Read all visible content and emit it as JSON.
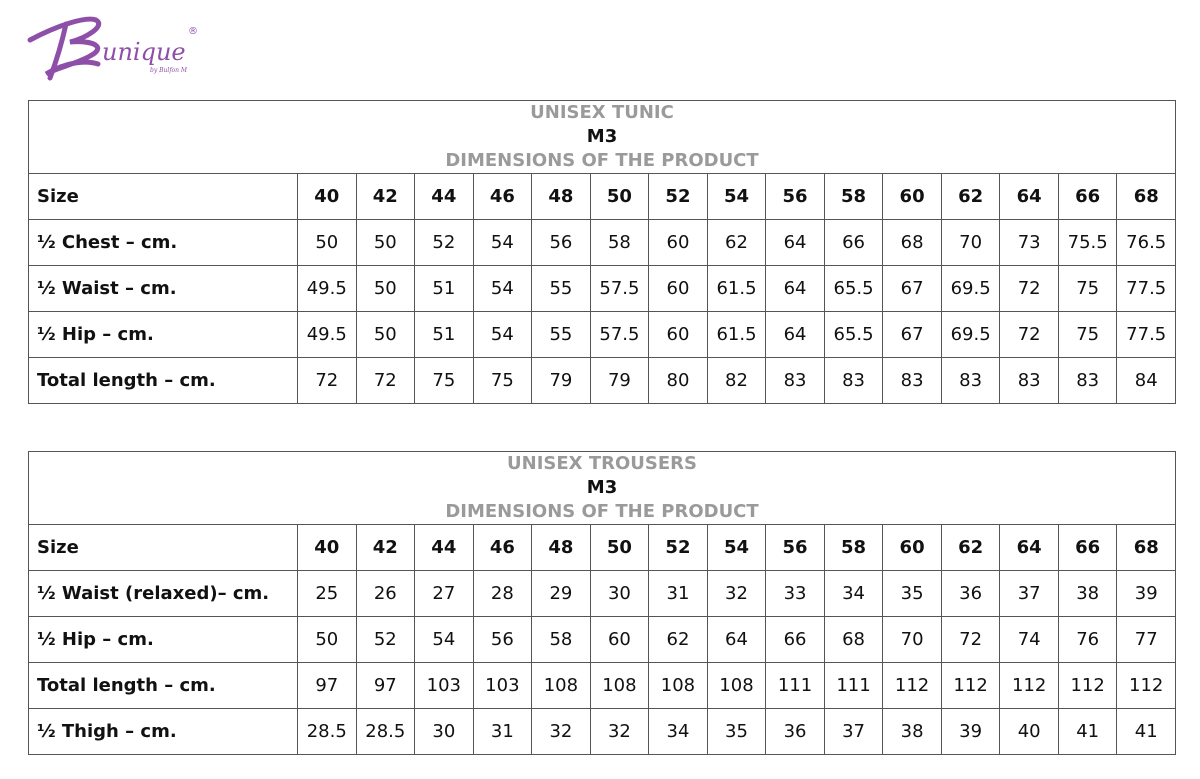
{
  "brand": {
    "logo_text": "Be unique",
    "logo_subtext": "by Bulfon M",
    "registered_mark": "®",
    "color": "#8e4fa8"
  },
  "tables": [
    {
      "id": "tunic",
      "title": "UNISEX TUNIC",
      "model": "M3",
      "subtitle": "DIMENSIONS OF THE PRODUCT",
      "size_label": "Size",
      "sizes": [
        "40",
        "42",
        "44",
        "46",
        "48",
        "50",
        "52",
        "54",
        "56",
        "58",
        "60",
        "62",
        "64",
        "66",
        "68"
      ],
      "rows": [
        {
          "label": "½ Chest – cm.",
          "values": [
            "50",
            "50",
            "52",
            "54",
            "56",
            "58",
            "60",
            "62",
            "64",
            "66",
            "68",
            "70",
            "73",
            "75.5",
            "76.5"
          ]
        },
        {
          "label": "½ Waist – cm.",
          "values": [
            "49.5",
            "50",
            "51",
            "54",
            "55",
            "57.5",
            "60",
            "61.5",
            "64",
            "65.5",
            "67",
            "69.5",
            "72",
            "75",
            "77.5"
          ]
        },
        {
          "label": "½ Hip – cm.",
          "values": [
            "49.5",
            "50",
            "51",
            "54",
            "55",
            "57.5",
            "60",
            "61.5",
            "64",
            "65.5",
            "67",
            "69.5",
            "72",
            "75",
            "77.5"
          ]
        },
        {
          "label": "Total length – cm.",
          "values": [
            "72",
            "72",
            "75",
            "75",
            "79",
            "79",
            "80",
            "82",
            "83",
            "83",
            "83",
            "83",
            "83",
            "83",
            "84"
          ]
        }
      ]
    },
    {
      "id": "trousers",
      "title": "UNISEX TROUSERS",
      "model": "M3",
      "subtitle": "DIMENSIONS OF THE PRODUCT",
      "size_label": "Size",
      "sizes": [
        "40",
        "42",
        "44",
        "46",
        "48",
        "50",
        "52",
        "54",
        "56",
        "58",
        "60",
        "62",
        "64",
        "66",
        "68"
      ],
      "rows": [
        {
          "label": "½ Waist (relaxed)– cm.",
          "values": [
            "25",
            "26",
            "27",
            "28",
            "29",
            "30",
            "31",
            "32",
            "33",
            "34",
            "35",
            "36",
            "37",
            "38",
            "39"
          ]
        },
        {
          "label": "½ Hip – cm.",
          "values": [
            "50",
            "52",
            "54",
            "56",
            "58",
            "60",
            "62",
            "64",
            "66",
            "68",
            "70",
            "72",
            "74",
            "76",
            "77"
          ]
        },
        {
          "label": "Total length – cm.",
          "values": [
            "97",
            "97",
            "103",
            "103",
            "108",
            "108",
            "108",
            "108",
            "111",
            "111",
            "112",
            "112",
            "112",
            "112",
            "112"
          ]
        },
        {
          "label": "½ Thigh – cm.",
          "values": [
            "28.5",
            "28.5",
            "30",
            "31",
            "32",
            "32",
            "34",
            "35",
            "36",
            "37",
            "38",
            "39",
            "40",
            "41",
            "41"
          ]
        }
      ]
    }
  ]
}
